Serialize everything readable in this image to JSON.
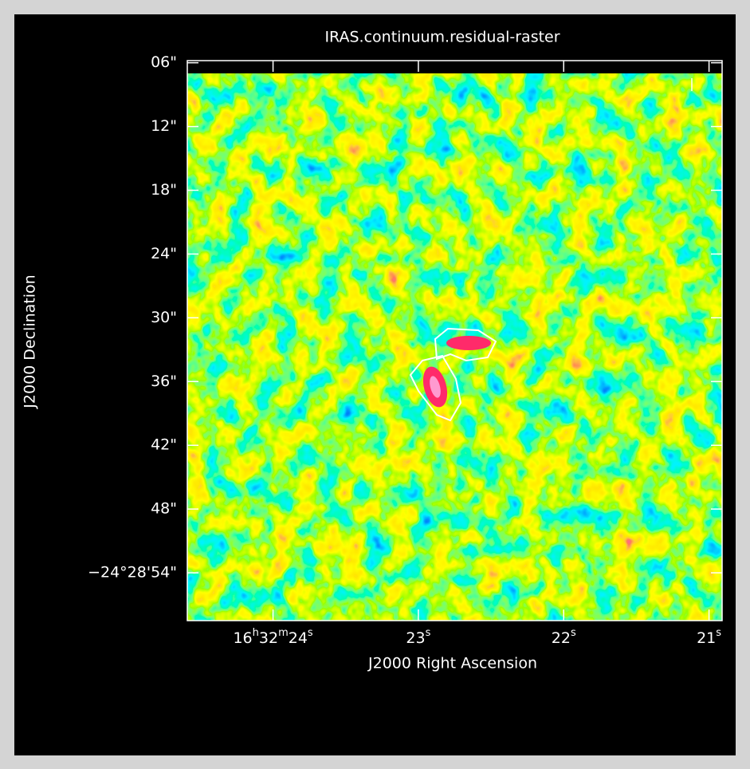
{
  "chart_data": {
    "type": "raster",
    "title": "IRAS.continuum.residual-raster",
    "x_label": "J2000 Right Ascension",
    "y_label": "J2000 Declination",
    "xlim": [
      24.59,
      20.91
    ],
    "ylim": [
      58.5,
      5.8
    ],
    "xticks": [
      {
        "value": 24,
        "label": "16h32m24s"
      },
      {
        "value": 23,
        "label": "23s"
      },
      {
        "value": 22,
        "label": "22s"
      },
      {
        "value": 21,
        "label": "21s"
      }
    ],
    "yticks": [
      {
        "value": 6,
        "label": "06\""
      },
      {
        "value": 12,
        "label": "12\""
      },
      {
        "value": 18,
        "label": "18\""
      },
      {
        "value": 24,
        "label": "24\""
      },
      {
        "value": 30,
        "label": "30\""
      },
      {
        "value": 36,
        "label": "36\""
      },
      {
        "value": 42,
        "label": "42\""
      },
      {
        "value": 48,
        "label": "48\""
      },
      {
        "value": 54,
        "label": "−24°28'54\""
      }
    ]
  }
}
